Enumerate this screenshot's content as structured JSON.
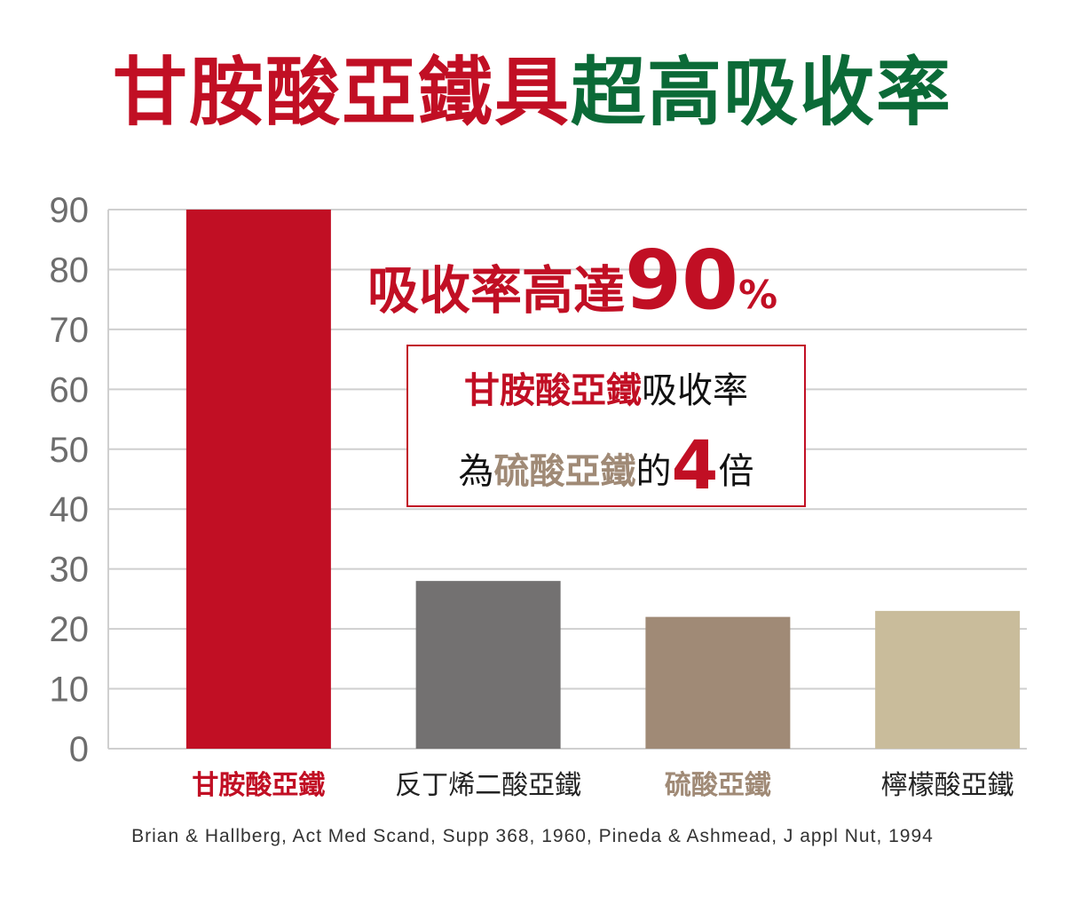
{
  "title": {
    "part1": "甘胺酸亞鐵具",
    "part2": "超高吸收率",
    "color1": "#c10f24",
    "color2": "#0b6a37"
  },
  "callout": {
    "headline_text": "吸收率高達",
    "headline_number": "90",
    "headline_unit": "%",
    "box_line1_highlight": "甘胺酸亞鐵",
    "box_line1_rest": "吸收率",
    "box_line2_prefix": "為",
    "box_line2_highlight": "硫酸亞鐵",
    "box_line2_mid": "的",
    "box_line2_number": "4",
    "box_line2_suffix": "倍"
  },
  "source": "Brian & Hallberg, Act Med Scand, Supp 368, 1960, Pineda & Ashmead, J appl Nut, 1994",
  "chart_data": {
    "type": "bar",
    "categories": [
      "甘胺酸亞鐵",
      "反丁烯二酸亞鐵",
      "硫酸亞鐵",
      "檸檬酸亞鐵"
    ],
    "values": [
      90,
      28,
      22,
      23
    ],
    "bar_colors": [
      "#c10f24",
      "#737171",
      "#a08a76",
      "#c9bc9b"
    ],
    "label_colors": [
      "#c10f24",
      "#222222",
      "#a08a76",
      "#222222"
    ],
    "yticks": [
      0,
      10,
      20,
      30,
      40,
      50,
      60,
      70,
      80,
      90
    ],
    "ylim": [
      0,
      90
    ],
    "grid": true,
    "xlabel": "",
    "ylabel": ""
  }
}
